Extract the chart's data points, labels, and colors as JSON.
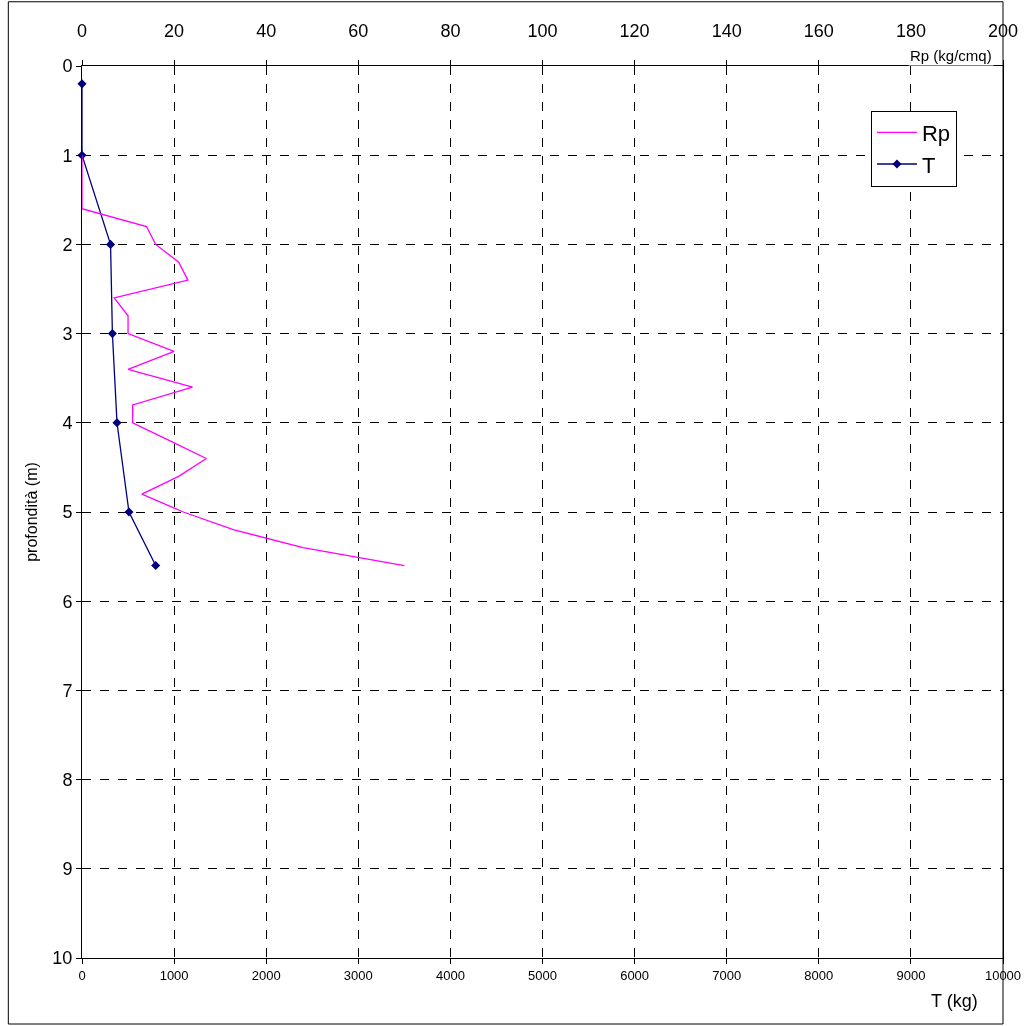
{
  "chart_data": {
    "type": "line",
    "ylabel": "profondità (m)",
    "xlabel": "T (kg)",
    "x2label": "Rp (kg/cmq)",
    "ylim": [
      10,
      0
    ],
    "yticks": [
      0,
      1,
      2,
      3,
      4,
      5,
      6,
      7,
      8,
      9,
      10
    ],
    "xlim": [
      0,
      10000
    ],
    "xticks": [
      0,
      1000,
      2000,
      3000,
      4000,
      5000,
      6000,
      7000,
      8000,
      9000,
      10000
    ],
    "x2lim": [
      0,
      200
    ],
    "x2ticks": [
      0,
      20,
      40,
      60,
      80,
      100,
      120,
      140,
      160,
      180,
      200
    ],
    "grid": true,
    "legend": "top right",
    "series": [
      {
        "name": "Rp",
        "color": "#ff00ff",
        "axis": "x2",
        "marker": "none",
        "line_style": "solid",
        "x": [
          0,
          0,
          0,
          0,
          14,
          16,
          21,
          23,
          7,
          10,
          10,
          20,
          10,
          24,
          11,
          11,
          19,
          27,
          21,
          13,
          22,
          33,
          48,
          70
        ],
        "values": [
          1.0,
          1.2,
          1.4,
          1.6,
          1.8,
          2.0,
          2.2,
          2.4,
          2.6,
          2.8,
          3.0,
          3.2,
          3.4,
          3.6,
          3.8,
          4.0,
          4.2,
          4.4,
          4.6,
          4.8,
          5.0,
          5.2,
          5.4,
          5.6
        ]
      },
      {
        "name": "T",
        "color": "#000080",
        "marker": "diamond",
        "line_style": "solid",
        "x": [
          0,
          0,
          310,
          330,
          380,
          510,
          800
        ],
        "values": [
          0.2,
          1.0,
          2.0,
          3.0,
          4.0,
          5.0,
          5.6
        ]
      }
    ]
  }
}
